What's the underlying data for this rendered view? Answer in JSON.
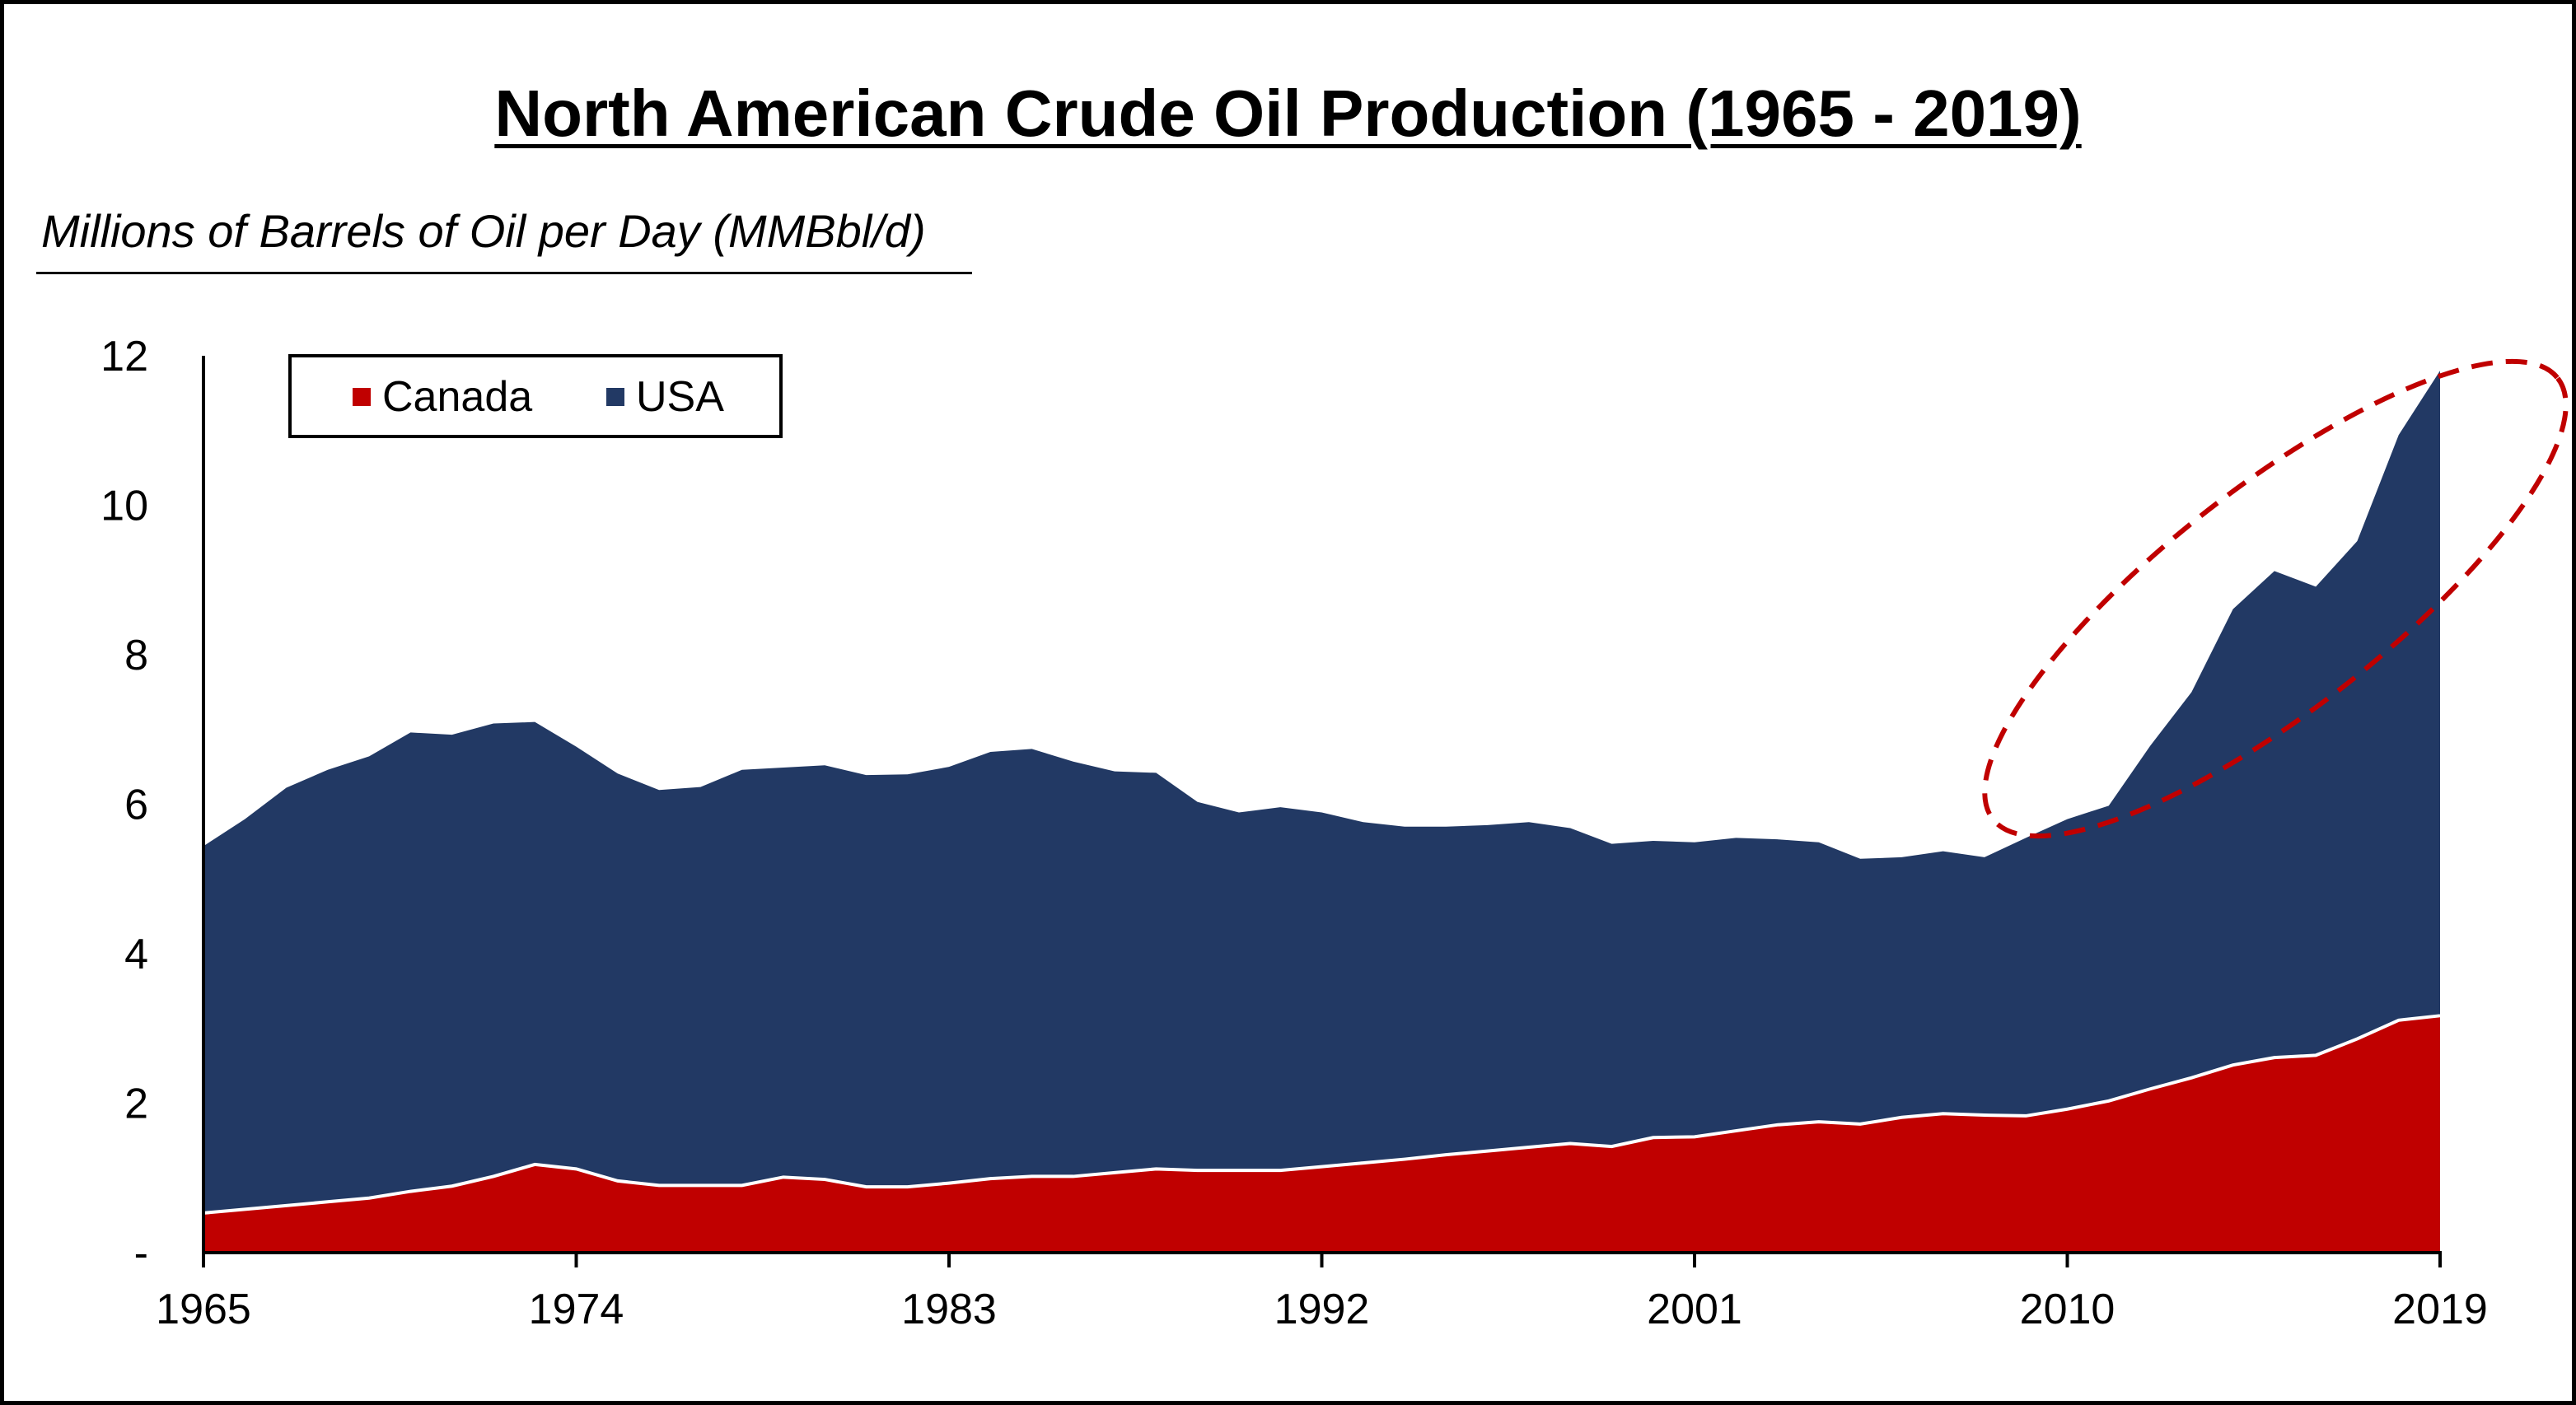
{
  "chart_data": {
    "type": "area",
    "stacked": true,
    "title": "North American Crude Oil Production (1965 - 2019)",
    "subtitle": "Millions of Barrels of Oil per Day (MMBbl/d)",
    "xlabel": "",
    "ylabel": "",
    "xlim": [
      1965,
      2019
    ],
    "ylim": [
      0,
      12
    ],
    "x_ticks": [
      "1965",
      "1974",
      "1983",
      "1992",
      "2001",
      "2010",
      "2019"
    ],
    "y_ticks": [
      "-",
      "2",
      "4",
      "6",
      "8",
      "10",
      "12"
    ],
    "grid": false,
    "legend_position": "top-left",
    "x": [
      1965,
      1966,
      1967,
      1968,
      1969,
      1970,
      1971,
      1972,
      1973,
      1974,
      1975,
      1976,
      1977,
      1978,
      1979,
      1980,
      1981,
      1982,
      1983,
      1984,
      1985,
      1986,
      1987,
      1988,
      1989,
      1990,
      1991,
      1992,
      1993,
      1994,
      1995,
      1996,
      1997,
      1998,
      1999,
      2000,
      2001,
      2002,
      2003,
      2004,
      2005,
      2006,
      2007,
      2008,
      2009,
      2010,
      2011,
      2012,
      2013,
      2014,
      2015,
      2016,
      2017,
      2018,
      2019
    ],
    "series": [
      {
        "name": "Canada",
        "color": "#c00000",
        "values": [
          0.53,
          0.58,
          0.63,
          0.68,
          0.73,
          0.82,
          0.89,
          1.02,
          1.18,
          1.12,
          0.96,
          0.9,
          0.9,
          0.9,
          1.01,
          0.98,
          0.88,
          0.88,
          0.93,
          0.99,
          1.02,
          1.02,
          1.07,
          1.12,
          1.1,
          1.1,
          1.1,
          1.15,
          1.2,
          1.25,
          1.31,
          1.36,
          1.41,
          1.46,
          1.42,
          1.54,
          1.55,
          1.63,
          1.71,
          1.75,
          1.72,
          1.81,
          1.86,
          1.84,
          1.83,
          1.92,
          2.03,
          2.19,
          2.34,
          2.51,
          2.61,
          2.64,
          2.86,
          3.11,
          3.17
        ]
      },
      {
        "name": "USA",
        "color": "#223964",
        "values": [
          4.91,
          5.22,
          5.59,
          5.78,
          5.91,
          6.14,
          6.04,
          6.06,
          5.92,
          5.65,
          5.45,
          5.29,
          5.33,
          5.56,
          5.48,
          5.54,
          5.51,
          5.52,
          5.57,
          5.71,
          5.72,
          5.55,
          5.37,
          5.3,
          4.93,
          4.79,
          4.86,
          4.74,
          4.56,
          4.45,
          4.39,
          4.36,
          4.35,
          4.22,
          4.05,
          3.97,
          3.94,
          3.92,
          3.82,
          3.74,
          3.55,
          3.48,
          3.51,
          3.45,
          3.72,
          3.88,
          3.95,
          4.59,
          5.16,
          6.1,
          6.51,
          6.27,
          6.66,
          7.83,
          8.63
        ]
      }
    ],
    "annotation": "dashed-red-ellipse-highlighting-2010-2019-USA-growth"
  }
}
